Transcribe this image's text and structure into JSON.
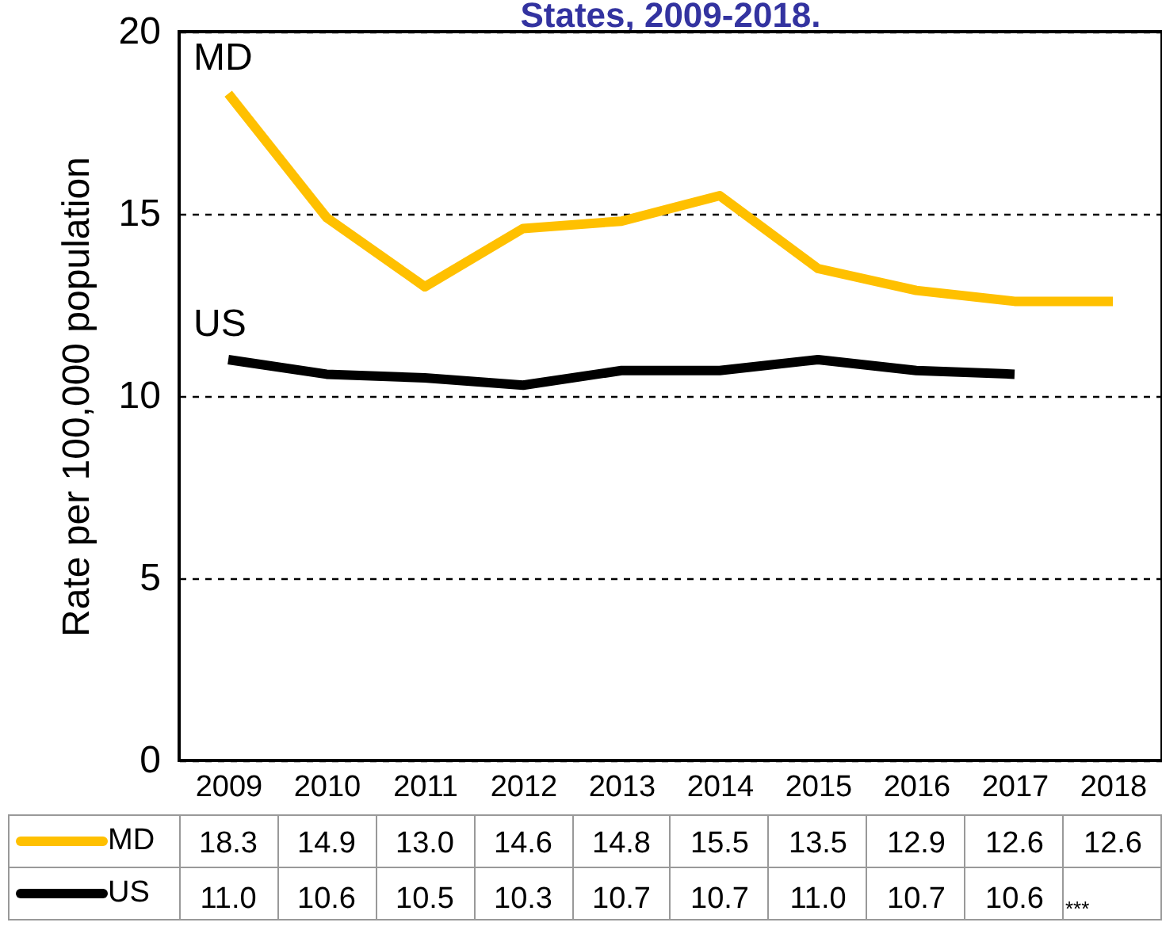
{
  "chart_data": {
    "type": "line",
    "title": "States, 2009-2018.",
    "ylabel": "Rate per 100,000 population",
    "categories": [
      "2009",
      "2010",
      "2011",
      "2012",
      "2013",
      "2014",
      "2015",
      "2016",
      "2017",
      "2018"
    ],
    "series": [
      {
        "name": "MD",
        "color": "#ffc000",
        "values": [
          18.3,
          14.9,
          13.0,
          14.6,
          14.8,
          15.5,
          13.5,
          12.9,
          12.6,
          12.6
        ],
        "value_labels": [
          "18.3",
          "14.9",
          "13.0",
          "14.6",
          "14.8",
          "15.5",
          "13.5",
          "12.9",
          "12.6",
          "12.6"
        ]
      },
      {
        "name": "US",
        "color": "#000000",
        "values": [
          11.0,
          10.6,
          10.5,
          10.3,
          10.7,
          10.7,
          11.0,
          10.7,
          10.6,
          null
        ],
        "value_labels": [
          "11.0",
          "10.6",
          "10.5",
          "10.3",
          "10.7",
          "10.7",
          "11.0",
          "10.7",
          "10.6",
          null
        ]
      }
    ],
    "ylim": [
      0,
      20
    ],
    "yticks": [
      0,
      5,
      10,
      15,
      20
    ],
    "grid": "y",
    "legend": "bottom left",
    "marker": "none",
    "line_style": "solid",
    "annotations": [
      "***"
    ]
  }
}
